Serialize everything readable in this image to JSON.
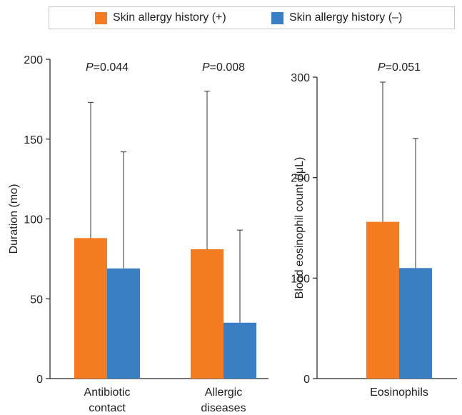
{
  "legend": {
    "items": [
      {
        "label": "Skin allergy history (+)",
        "color": "#f47b20"
      },
      {
        "label": "Skin allergy history (–)",
        "color": "#3a7ec4"
      }
    ]
  },
  "chart_data": [
    {
      "type": "bar",
      "ylabel": "Duration (mo)",
      "ylim": [
        0,
        200
      ],
      "yticks": [
        0,
        50,
        100,
        150,
        200
      ],
      "categories": [
        "Antibiotic\ncontact",
        "Allergic\ndiseases"
      ],
      "series": [
        {
          "name": "Skin allergy history (+)",
          "values": [
            88,
            81
          ],
          "errors": [
            85,
            99
          ]
        },
        {
          "name": "Skin allergy history (–)",
          "values": [
            69,
            35
          ],
          "errors": [
            73,
            58
          ]
        }
      ],
      "p_values": [
        {
          "prefix": "P",
          "text": "=0.044"
        },
        {
          "prefix": "P",
          "text": "=0.008"
        }
      ]
    },
    {
      "type": "bar",
      "ylabel": "Blood eosinophil count (/μL)",
      "ylim": [
        0,
        300
      ],
      "yticks": [
        0,
        100,
        200,
        300
      ],
      "categories": [
        "Eosinophils"
      ],
      "series": [
        {
          "name": "Skin allergy history (+)",
          "values": [
            156
          ],
          "errors": [
            139
          ]
        },
        {
          "name": "Skin allergy history (–)",
          "values": [
            110
          ],
          "errors": [
            129
          ]
        }
      ],
      "p_values": [
        {
          "prefix": "P",
          "text": "=0.051"
        }
      ]
    }
  ]
}
